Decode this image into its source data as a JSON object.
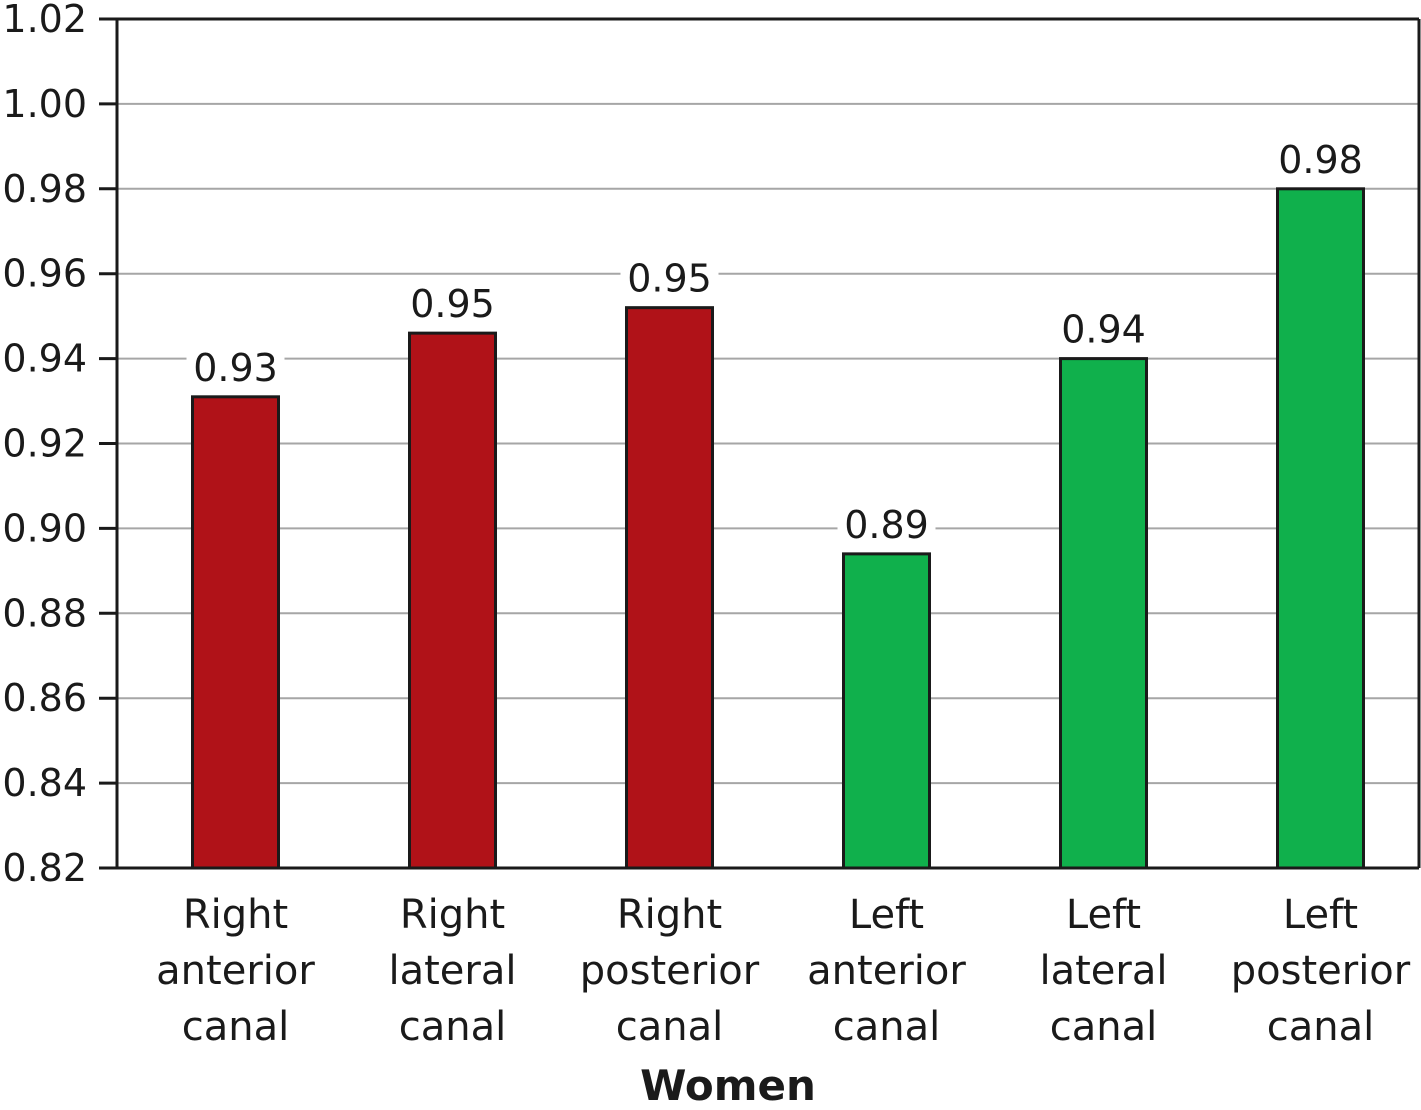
{
  "chart_data": {
    "type": "bar",
    "categories": [
      [
        "Right",
        "anterior",
        "canal"
      ],
      [
        "Right",
        "lateral",
        "canal"
      ],
      [
        "Right",
        "posterior",
        "canal"
      ],
      [
        "Left",
        "anterior",
        "canal"
      ],
      [
        "Left",
        "lateral",
        "canal"
      ],
      [
        "Left",
        "posterior",
        "canal"
      ]
    ],
    "values": [
      0.931,
      0.946,
      0.952,
      0.894,
      0.94,
      0.98
    ],
    "data_labels": [
      "0.93",
      "0.95",
      "0.95",
      "0.89",
      "0.94",
      "0.98"
    ],
    "bar_colors": [
      "#b01218",
      "#b01218",
      "#b01218",
      "#10b04c",
      "#10b04c",
      "#10b04c"
    ],
    "title": "",
    "xlabel": "Women",
    "ylabel": "",
    "ylim": [
      0.82,
      1.02
    ],
    "yticks": [
      "0.82",
      "0.84",
      "0.86",
      "0.88",
      "0.90",
      "0.92",
      "0.94",
      "0.96",
      "0.98",
      "1.00",
      "1.02"
    ],
    "grid": true,
    "legend": "none"
  }
}
